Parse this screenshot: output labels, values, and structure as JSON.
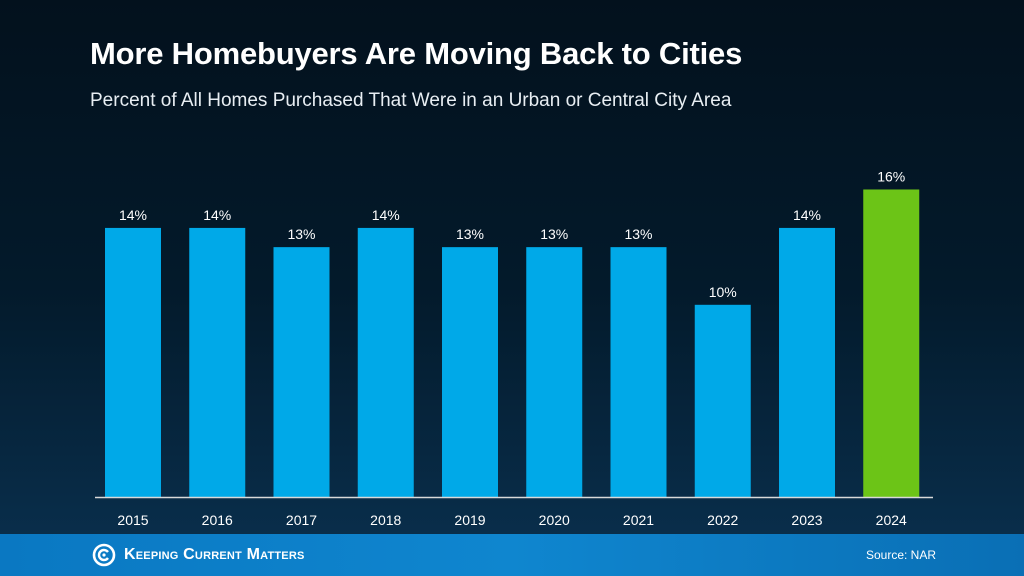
{
  "chart_data": {
    "type": "bar",
    "title": "More Homebuyers Are Moving Back to Cities",
    "subtitle": "Percent of All Homes Purchased That Were in an Urban or Central City Area",
    "categories": [
      "2015",
      "2016",
      "2017",
      "2018",
      "2019",
      "2020",
      "2021",
      "2022",
      "2023",
      "2024"
    ],
    "values": [
      14,
      14,
      13,
      14,
      13,
      13,
      13,
      10,
      14,
      16
    ],
    "data_labels": [
      "14%",
      "14%",
      "13%",
      "14%",
      "13%",
      "13%",
      "13%",
      "10%",
      "14%",
      "16%"
    ],
    "ylim": [
      0,
      17
    ],
    "grid": false,
    "colors": {
      "default": "#00a9e8",
      "highlight": "#6cc417",
      "highlight_category": "2024"
    }
  },
  "footer": {
    "logo_text": "Keeping Current Matters",
    "source": "Source: NAR"
  }
}
